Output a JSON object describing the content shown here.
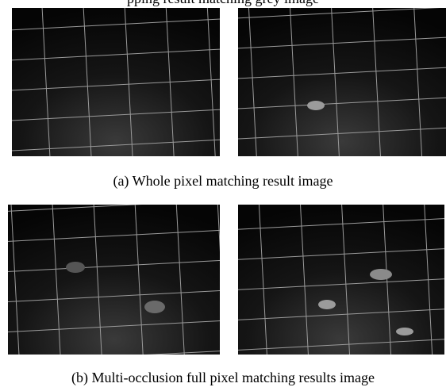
{
  "header": {
    "fragment": "pping result matching grey image"
  },
  "figures": [
    {
      "caption": "(a) Whole pixel matching result image"
    },
    {
      "caption": "(b) Multi-occlusion full pixel matching results image"
    }
  ]
}
